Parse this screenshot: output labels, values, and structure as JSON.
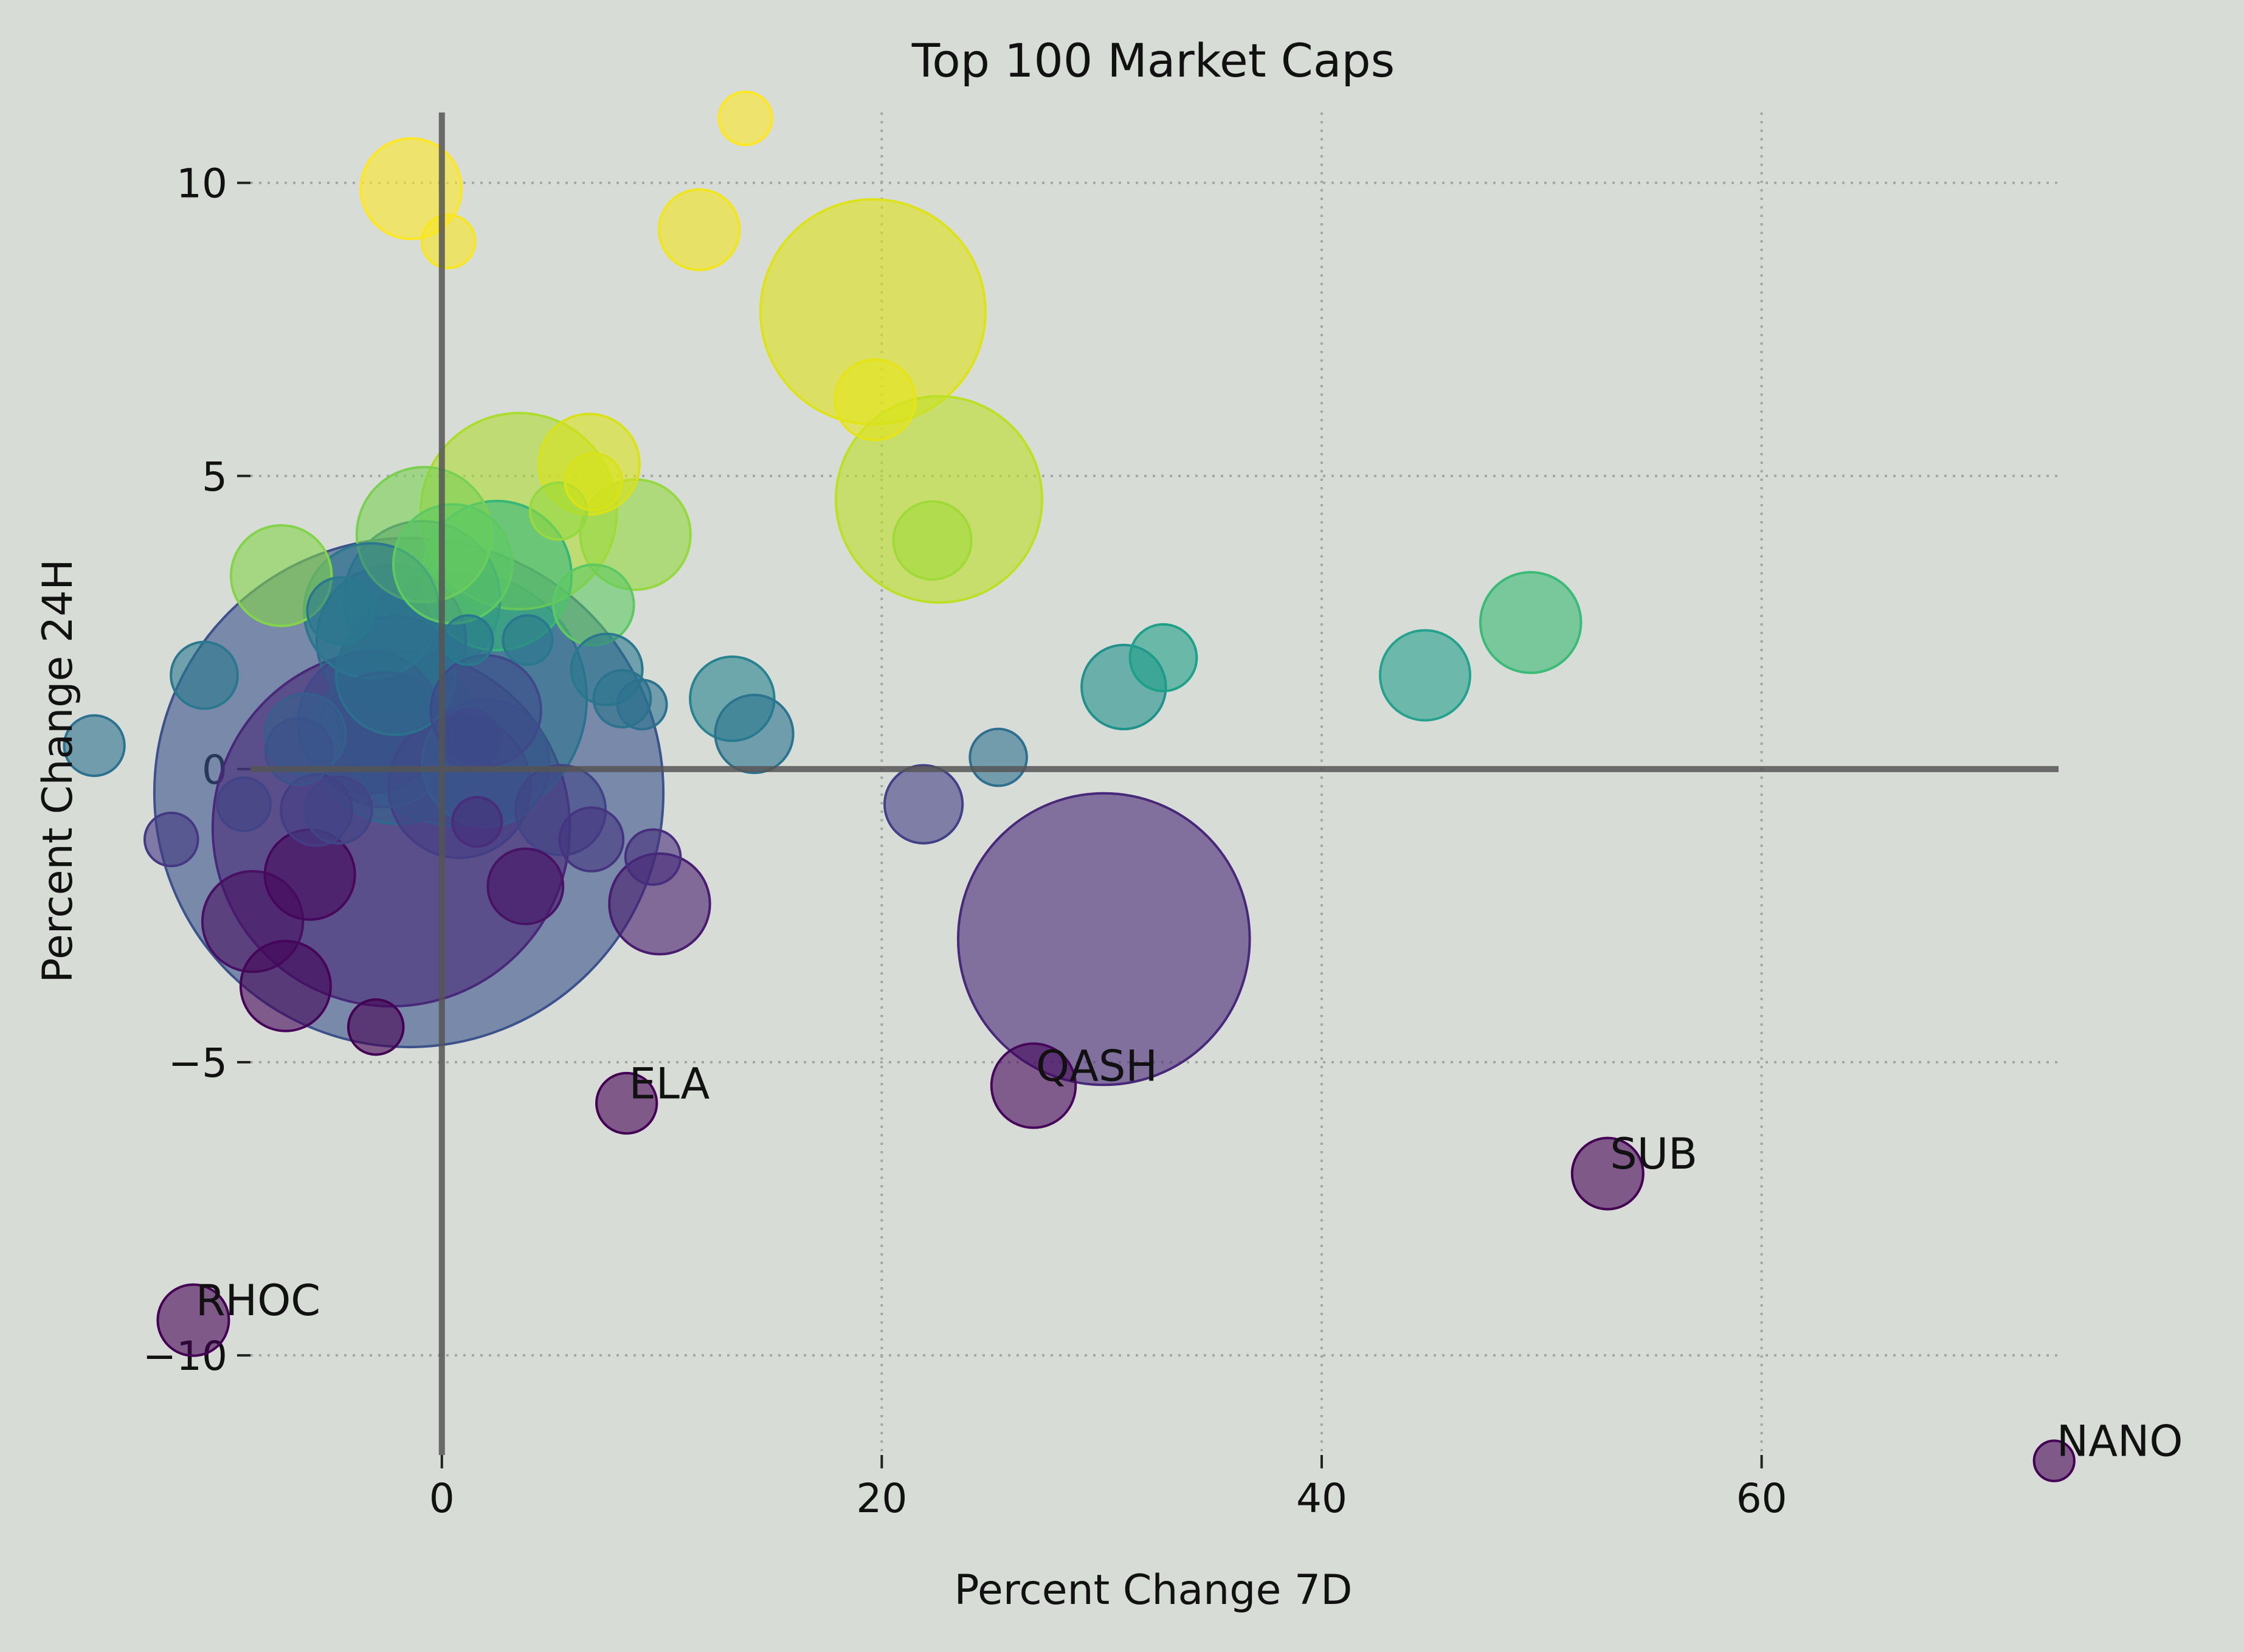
{
  "chart_data": {
    "type": "scatter",
    "title": "Top 100 Market Caps",
    "xlabel": "Percent Change 7D",
    "ylabel": "Percent Change 24H",
    "xlim": [
      -8.7,
      73.5
    ],
    "ylim": [
      -11.7,
      11.2
    ],
    "xticks": [
      0,
      20,
      40,
      60
    ],
    "xtick_labels": [
      "0",
      "20",
      "40",
      "60"
    ],
    "yticks": [
      -10,
      -5,
      0,
      5,
      10
    ],
    "ytick_labels": [
      "−10",
      "−5",
      "0",
      "5",
      "10"
    ],
    "grid": "dotted",
    "bubble_scale_note": "size = relative market cap (estimated)",
    "colors": {
      "background": "#d8dcd6",
      "grid": "#a4a8a3",
      "zero_lines": "#555555",
      "text": "#111111"
    },
    "points": [
      {
        "x": -1.5,
        "y": -0.4,
        "size": 128,
        "color": "#3b528b"
      },
      {
        "x": 30.1,
        "y": -2.9,
        "size": 42,
        "color": "#482878"
      },
      {
        "x": -2.3,
        "y": -1.0,
        "size": 63,
        "color": "#482878"
      },
      {
        "x": 0.8,
        "y": 1.2,
        "size": 32,
        "color": "#2c728e"
      },
      {
        "x": 19.6,
        "y": 7.8,
        "size": 25,
        "color": "#dde318"
      },
      {
        "x": 22.6,
        "y": 4.6,
        "size": 21,
        "color": "#bddf26"
      },
      {
        "x": 3.5,
        "y": 4.4,
        "size": 19,
        "color": "#addc30"
      },
      {
        "x": -2.0,
        "y": 0.5,
        "size": 14,
        "color": "#31688e"
      },
      {
        "x": -0.9,
        "y": 2.9,
        "size": 12,
        "color": "#2e6f8e"
      },
      {
        "x": 2.5,
        "y": 3.3,
        "size": 11,
        "color": "#35b779"
      },
      {
        "x": -2.3,
        "y": 2.2,
        "size": 11,
        "color": "#306a8e"
      },
      {
        "x": -3.3,
        "y": 0.8,
        "size": 10,
        "color": "#3e4a89"
      },
      {
        "x": 0.8,
        "y": -0.3,
        "size": 10,
        "color": "#433e85"
      },
      {
        "x": -0.8,
        "y": 4.0,
        "size": 9,
        "color": "#7ad151"
      },
      {
        "x": -3.2,
        "y": 2.7,
        "size": 9,
        "color": "#2a788e"
      },
      {
        "x": -2.6,
        "y": 0.5,
        "size": 9,
        "color": "#3b528b"
      },
      {
        "x": 2.0,
        "y": 0.1,
        "size": 8,
        "color": "#38598c"
      },
      {
        "x": -2.1,
        "y": 1.6,
        "size": 7,
        "color": "#2d708e"
      },
      {
        "x": 0.5,
        "y": 3.5,
        "size": 7,
        "color": "#5ec962"
      },
      {
        "x": 2.0,
        "y": 1.0,
        "size": 6,
        "color": "#3e4989"
      },
      {
        "x": 8.8,
        "y": 4.0,
        "size": 6,
        "color": "#95d840"
      },
      {
        "x": -1.4,
        "y": 9.9,
        "size": 5,
        "color": "#fde725"
      },
      {
        "x": 6.7,
        "y": 5.2,
        "size": 5,
        "color": "#d8e219"
      },
      {
        "x": 49.5,
        "y": 2.5,
        "size": 5,
        "color": "#3bbb75"
      },
      {
        "x": -8.6,
        "y": -2.6,
        "size": 5,
        "color": "#471063"
      },
      {
        "x": 9.9,
        "y": -2.3,
        "size": 5,
        "color": "#481c6e"
      },
      {
        "x": -7.3,
        "y": 3.3,
        "size": 5,
        "color": "#84d44b"
      },
      {
        "x": -7.1,
        "y": -3.7,
        "size": 4,
        "color": "#450559"
      },
      {
        "x": -6.0,
        "y": -1.8,
        "size": 4,
        "color": "#46085c"
      },
      {
        "x": 5.4,
        "y": -0.7,
        "size": 4,
        "color": "#414487"
      },
      {
        "x": 44.7,
        "y": 1.6,
        "size": 4,
        "color": "#25a18e"
      },
      {
        "x": 26.9,
        "y": -5.4,
        "size": 3.5,
        "color": "#46075a"
      },
      {
        "x": 13.2,
        "y": 1.2,
        "size": 3.5,
        "color": "#26838f"
      },
      {
        "x": 31.0,
        "y": 1.4,
        "size": 3.5,
        "color": "#21918c"
      },
      {
        "x": 11.7,
        "y": 9.2,
        "size": 3.2,
        "color": "#f1e51d"
      },
      {
        "x": 19.7,
        "y": 6.3,
        "size": 3.2,
        "color": "#e5e419"
      },
      {
        "x": 6.9,
        "y": 2.8,
        "size": 3.2,
        "color": "#5ec962"
      },
      {
        "x": -6.2,
        "y": 0.6,
        "size": 3.2,
        "color": "#35608d"
      },
      {
        "x": 22.3,
        "y": 3.9,
        "size": 3,
        "color": "#a0da39"
      },
      {
        "x": 14.2,
        "y": 0.6,
        "size": 3,
        "color": "#2c738e"
      },
      {
        "x": 21.9,
        "y": -0.6,
        "size": 3,
        "color": "#424086"
      },
      {
        "x": 3.8,
        "y": -2.0,
        "size": 2.8,
        "color": "#471365"
      },
      {
        "x": -5.7,
        "y": -0.7,
        "size": 2.5,
        "color": "#433d84"
      },
      {
        "x": 7.5,
        "y": 1.7,
        "size": 2.5,
        "color": "#2a788e"
      },
      {
        "x": 53.0,
        "y": -6.9,
        "size": 2.5,
        "color": "#440154"
      },
      {
        "x": -11.3,
        "y": -9.4,
        "size": 2.5,
        "color": "#440154"
      },
      {
        "x": 32.8,
        "y": 1.9,
        "size": 2.2,
        "color": "#1fa088"
      },
      {
        "x": -4.6,
        "y": 2.7,
        "size": 2.2,
        "color": "#2a788e"
      },
      {
        "x": -10.8,
        "y": 1.6,
        "size": 2.2,
        "color": "#2a788e"
      },
      {
        "x": -6.5,
        "y": 0.3,
        "size": 2.2,
        "color": "#3b528b"
      },
      {
        "x": -4.7,
        "y": -0.7,
        "size": 2.2,
        "color": "#414487"
      },
      {
        "x": 6.8,
        "y": -1.2,
        "size": 2,
        "color": "#453581"
      },
      {
        "x": 8.4,
        "y": -5.7,
        "size": 1.8,
        "color": "#440154"
      },
      {
        "x": -15.8,
        "y": 0.4,
        "size": 1.8,
        "color": "#2c728e"
      },
      {
        "x": 1.3,
        "y": 0.5,
        "size": 1.8,
        "color": "#3e4a89"
      },
      {
        "x": 25.3,
        "y": 0.2,
        "size": 1.6,
        "color": "#2e6f8e"
      },
      {
        "x": 5.3,
        "y": 4.4,
        "size": 1.6,
        "color": "#95d840"
      },
      {
        "x": 6.9,
        "y": 4.9,
        "size": 1.6,
        "color": "#d8e219"
      },
      {
        "x": 8.2,
        "y": 1.2,
        "size": 1.6,
        "color": "#2c738e"
      },
      {
        "x": 9.6,
        "y": -1.5,
        "size": 1.5,
        "color": "#472f7d"
      },
      {
        "x": -3.0,
        "y": -4.4,
        "size": 1.5,
        "color": "#440154"
      },
      {
        "x": -12.3,
        "y": -1.2,
        "size": 1.4,
        "color": "#443983"
      },
      {
        "x": -9.0,
        "y": -0.6,
        "size": 1.4,
        "color": "#414487"
      },
      {
        "x": 0.3,
        "y": 9.0,
        "size": 1.4,
        "color": "#f8e621"
      },
      {
        "x": 13.8,
        "y": 11.1,
        "size": 1.4,
        "color": "#fde725"
      },
      {
        "x": 3.9,
        "y": 2.2,
        "size": 1.2,
        "color": "#2a788e"
      },
      {
        "x": 1.2,
        "y": 2.2,
        "size": 1.2,
        "color": "#2a788e"
      },
      {
        "x": 9.1,
        "y": 1.1,
        "size": 1.2,
        "color": "#2c728e"
      },
      {
        "x": 1.6,
        "y": -0.9,
        "size": 1.2,
        "color": "#472d7b"
      },
      {
        "x": 73.3,
        "y": -11.8,
        "size": 0.8,
        "color": "#440154"
      }
    ],
    "annotations": [
      {
        "text": "ELA",
        "x": 8.4,
        "y": -5.7
      },
      {
        "text": "QASH",
        "x": 26.9,
        "y": -5.4
      },
      {
        "text": "SUB",
        "x": 53.0,
        "y": -6.9
      },
      {
        "text": "RHOC",
        "x": -11.3,
        "y": -9.4
      },
      {
        "text": "NANO",
        "x": 73.3,
        "y": -11.8
      }
    ]
  }
}
